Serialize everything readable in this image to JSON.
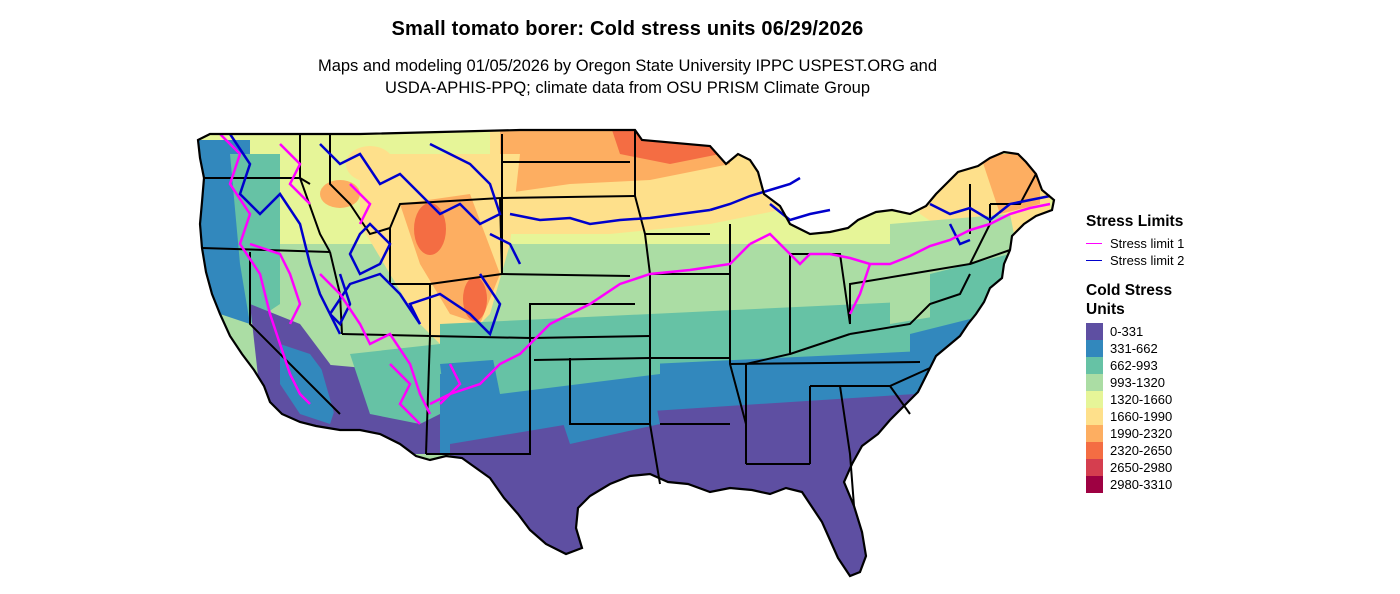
{
  "title": "Small tomato borer: Cold stress units 06/29/2026",
  "subtitle": {
    "line1": "Maps and modeling 01/05/2026 by Oregon State University IPPC USPEST.ORG and",
    "line2": "USDA-APHIS-PPQ; climate data from OSU PRISM Climate Group"
  },
  "legend": {
    "lines_title": "Stress Limits",
    "lines": [
      {
        "label": "Stress limit 1",
        "color": "#ff00ff"
      },
      {
        "label": "Stress limit 2",
        "color": "#0000cc"
      }
    ],
    "fill_title_line1": "Cold Stress",
    "fill_title_line2": "Units",
    "fills": [
      {
        "label": "0-331",
        "color": "#5e4fa2"
      },
      {
        "label": "331-662",
        "color": "#3288bd"
      },
      {
        "label": "662-993",
        "color": "#66c2a5"
      },
      {
        "label": "993-1320",
        "color": "#abdda4"
      },
      {
        "label": "1320-1660",
        "color": "#e6f598"
      },
      {
        "label": "1660-1990",
        "color": "#fee08b"
      },
      {
        "label": "1990-2320",
        "color": "#fdae61"
      },
      {
        "label": "2320-2650",
        "color": "#f46d43"
      },
      {
        "label": "2650-2980",
        "color": "#d53e4f"
      },
      {
        "label": "2980-3310",
        "color": "#9e0142"
      }
    ]
  }
}
